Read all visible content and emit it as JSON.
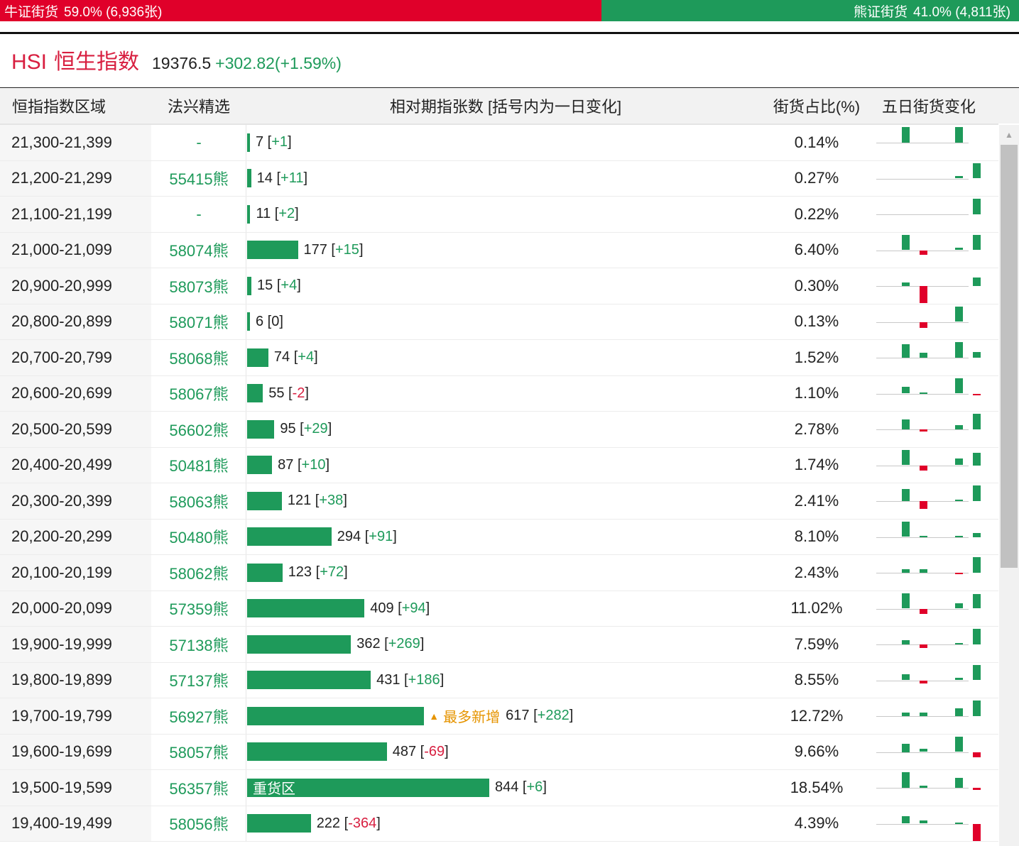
{
  "ratio": {
    "bull_label": "牛证街货",
    "bull_value": "59.0% (6,936张)",
    "bull_share": 0.59,
    "bear_label": "熊证街货",
    "bear_value": "41.0% (4,811张)",
    "bull_color": "#e0002a",
    "bear_color": "#1e9a5a"
  },
  "index": {
    "code": "HSI",
    "name": "恒生指数",
    "price": "19376.5",
    "change": "+302.82(+1.59%)"
  },
  "table": {
    "headers": {
      "range": "恒指指数区域",
      "pick": "法兴精选",
      "qty": "相对期指张数 [括号内为一日变化]",
      "pct": "街货占比(%)",
      "trend": "五日街货变化"
    },
    "max_qty": 844,
    "rows": [
      {
        "range": "21,300-21,399",
        "pick": "-",
        "qty": 7,
        "qty_text": "7",
        "delta": "+1",
        "pct": "0.14%",
        "trend": [
          0.9,
          0,
          0,
          0.9,
          0
        ]
      },
      {
        "range": "21,200-21,299",
        "pick": "55415熊",
        "qty": 14,
        "qty_text": "14",
        "delta": "+11",
        "pct": "0.27%",
        "trend": [
          0,
          0,
          0,
          0.15,
          0.9
        ]
      },
      {
        "range": "21,100-21,199",
        "pick": "-",
        "qty": 11,
        "qty_text": "11",
        "delta": "+2",
        "pct": "0.22%",
        "trend": [
          0,
          0,
          0,
          0,
          0.9
        ]
      },
      {
        "range": "21,000-21,099",
        "pick": "58074熊",
        "qty": 177,
        "qty_text": "177",
        "delta": "+15",
        "pct": "6.40%",
        "trend": [
          0.9,
          -0.25,
          0,
          0.15,
          0.9
        ]
      },
      {
        "range": "20,900-20,999",
        "pick": "58073熊",
        "qty": 15,
        "qty_text": "15",
        "delta": "+4",
        "pct": "0.30%",
        "trend": [
          0.2,
          -1.0,
          0,
          0,
          0.5
        ]
      },
      {
        "range": "20,800-20,899",
        "pick": "58071熊",
        "qty": 6,
        "qty_text": "6",
        "delta": "0",
        "pct": "0.13%",
        "trend": [
          0,
          -0.35,
          0,
          0.9,
          0
        ]
      },
      {
        "range": "20,700-20,799",
        "pick": "58068熊",
        "qty": 74,
        "qty_text": "74",
        "delta": "+4",
        "pct": "1.52%",
        "trend": [
          0.8,
          0.3,
          0,
          0.9,
          0.35
        ]
      },
      {
        "range": "20,600-20,699",
        "pick": "58067熊",
        "qty": 55,
        "qty_text": "55",
        "delta": "-2",
        "pct": "1.10%",
        "trend": [
          0.4,
          0.08,
          0,
          0.9,
          -0.08
        ]
      },
      {
        "range": "20,500-20,599",
        "pick": "56602熊",
        "qty": 95,
        "qty_text": "95",
        "delta": "+29",
        "pct": "2.78%",
        "trend": [
          0.6,
          -0.12,
          0,
          0.25,
          0.9
        ]
      },
      {
        "range": "20,400-20,499",
        "pick": "50481熊",
        "qty": 87,
        "qty_text": "87",
        "delta": "+10",
        "pct": "1.74%",
        "trend": [
          0.9,
          -0.3,
          0,
          0.4,
          0.75
        ]
      },
      {
        "range": "20,300-20,399",
        "pick": "58063熊",
        "qty": 121,
        "qty_text": "121",
        "delta": "+38",
        "pct": "2.41%",
        "trend": [
          0.7,
          -0.45,
          0,
          0.08,
          0.9
        ]
      },
      {
        "range": "20,200-20,299",
        "pick": "50480熊",
        "qty": 294,
        "qty_text": "294",
        "delta": "+91",
        "pct": "8.10%",
        "trend": [
          0.9,
          0.05,
          0,
          0.05,
          0.25
        ]
      },
      {
        "range": "20,100-20,199",
        "pick": "58062熊",
        "qty": 123,
        "qty_text": "123",
        "delta": "+72",
        "pct": "2.43%",
        "trend": [
          0.2,
          0.2,
          0,
          -0.04,
          0.9
        ]
      },
      {
        "range": "20,000-20,099",
        "pick": "57359熊",
        "qty": 409,
        "qty_text": "409",
        "delta": "+94",
        "pct": "11.02%",
        "trend": [
          0.9,
          -0.3,
          0,
          0.3,
          0.85
        ]
      },
      {
        "range": "19,900-19,999",
        "pick": "57138熊",
        "qty": 362,
        "qty_text": "362",
        "delta": "+269",
        "pct": "7.59%",
        "trend": [
          0.25,
          -0.2,
          0,
          0.08,
          0.9
        ]
      },
      {
        "range": "19,800-19,899",
        "pick": "57137熊",
        "qty": 431,
        "qty_text": "431",
        "delta": "+186",
        "pct": "8.55%",
        "trend": [
          0.35,
          -0.2,
          0,
          0.15,
          0.9
        ]
      },
      {
        "range": "19,700-19,799",
        "pick": "56927熊",
        "qty": 617,
        "qty_text": "617",
        "delta": "+282",
        "pct": "12.72%",
        "trend": [
          0.2,
          0.2,
          0,
          0.45,
          0.9
        ],
        "badge": "最多新增"
      },
      {
        "range": "19,600-19,699",
        "pick": "58057熊",
        "qty": 487,
        "qty_text": "487",
        "delta": "-69",
        "pct": "9.66%",
        "trend": [
          0.5,
          0.2,
          0,
          0.9,
          -0.3
        ]
      },
      {
        "range": "19,500-19,599",
        "pick": "56357熊",
        "qty": 844,
        "qty_text": "844",
        "delta": "+6",
        "pct": "18.54%",
        "trend": [
          0.9,
          0.12,
          0,
          0.6,
          -0.12
        ],
        "bar_label": "重货区"
      },
      {
        "range": "19,400-19,499",
        "pick": "58056熊",
        "qty": 222,
        "qty_text": "222",
        "delta": "-364",
        "pct": "4.39%",
        "trend": [
          0.45,
          0.2,
          0,
          0.08,
          -1.0
        ]
      }
    ]
  },
  "colors": {
    "up": "#1e9a5a",
    "down": "#e0002a",
    "accent": "#d81f40",
    "badge": "#e69400"
  }
}
